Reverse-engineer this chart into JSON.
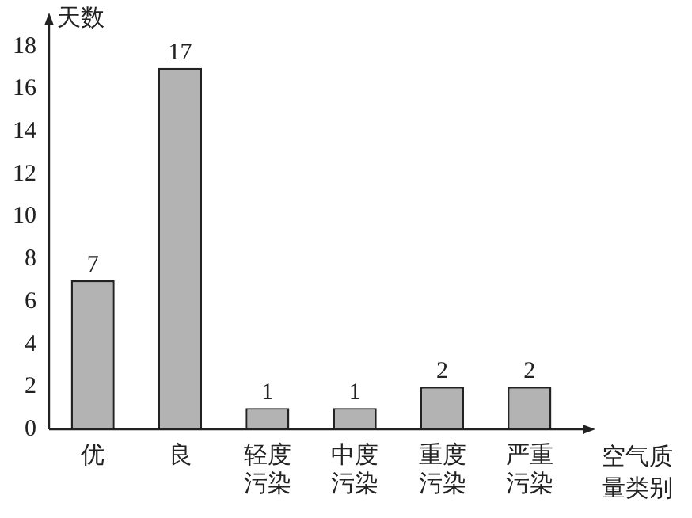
{
  "chart_data": {
    "type": "bar",
    "xlabel": "空气质量类别",
    "ylabel": "天数",
    "categories": [
      "优",
      "良",
      "轻度污染",
      "中度污染",
      "重度污染",
      "严重污染"
    ],
    "values": [
      7,
      17,
      1,
      1,
      2,
      2
    ],
    "color": "#b3b3b3",
    "ylim": [
      0,
      19
    ],
    "yticks": [
      0,
      2,
      4,
      6,
      8,
      10,
      12,
      14,
      16,
      18
    ],
    "grid": false,
    "data_labels": true
  }
}
